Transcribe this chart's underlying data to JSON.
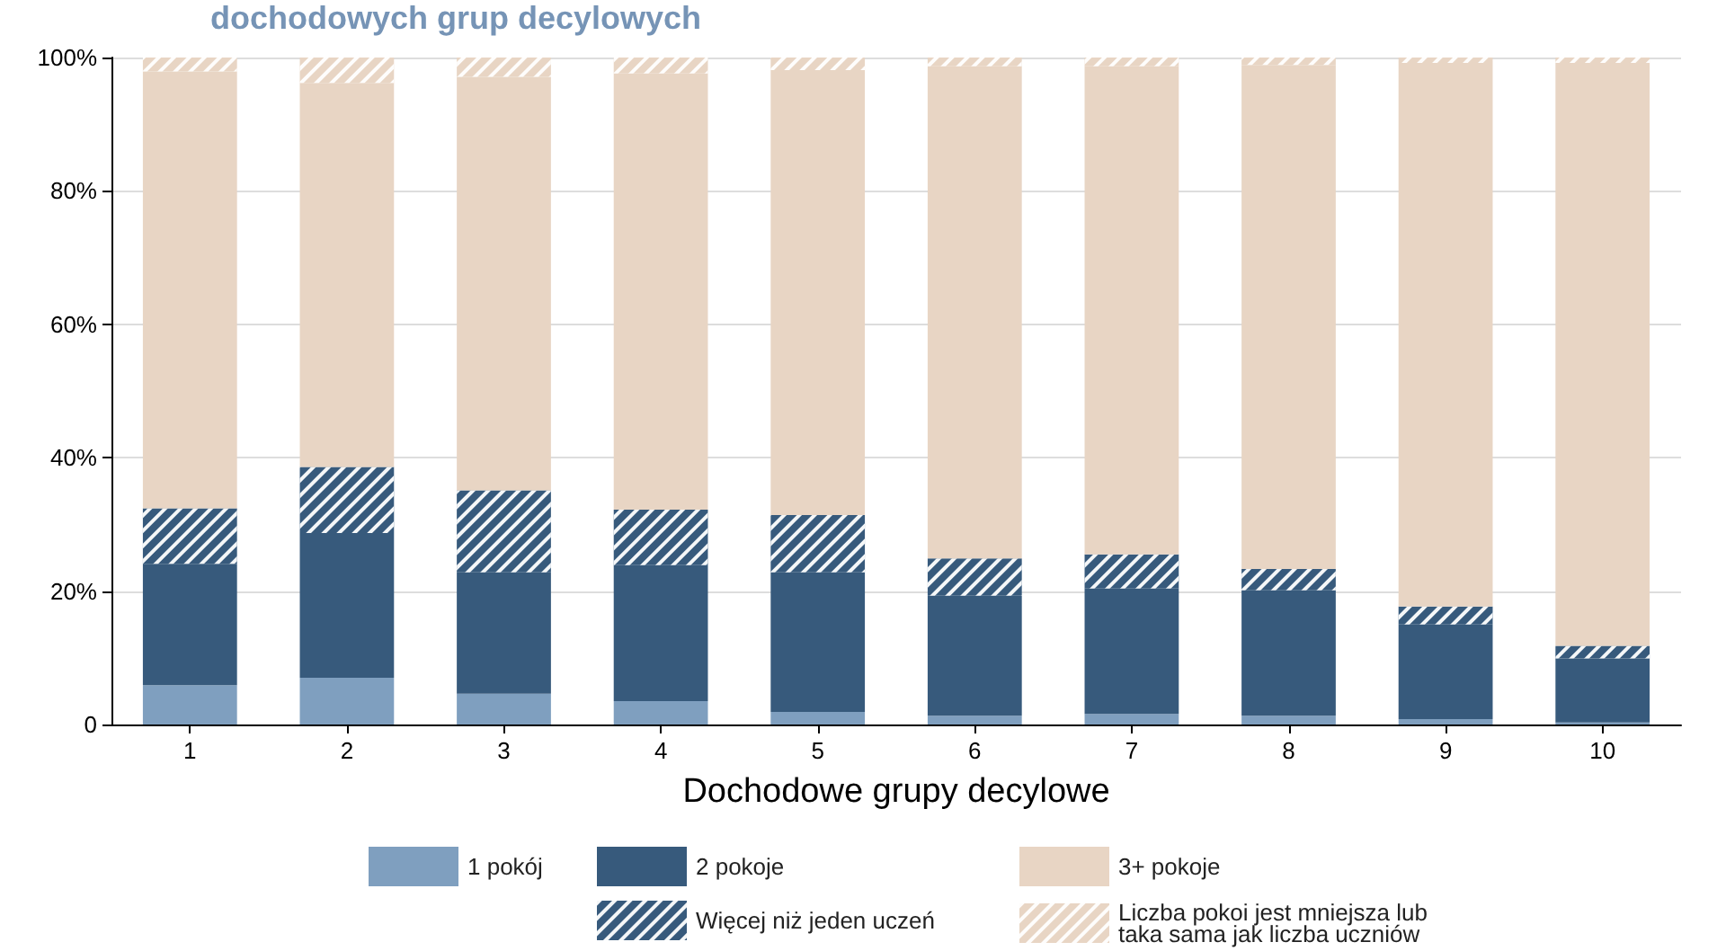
{
  "chart_data": {
    "type": "bar",
    "title": "dochodowych grup decylowych",
    "xlabel": "Dochodowe grupy decylowe",
    "categories": [
      "1",
      "2",
      "3",
      "4",
      "5",
      "6",
      "7",
      "8",
      "9",
      "10"
    ],
    "stacked": true,
    "ylim": [
      0,
      100
    ],
    "yticks": [
      {
        "value": 0,
        "label": "0"
      },
      {
        "value": 20,
        "label": "20%"
      },
      {
        "value": 40,
        "label": "40%"
      },
      {
        "value": 60,
        "label": "60%"
      },
      {
        "value": 80,
        "label": "80%"
      },
      {
        "value": 100,
        "label": "100%"
      }
    ],
    "grid": "y",
    "legend": "bottom",
    "series": [
      {
        "name": "1 pokój",
        "color": "#7f9fbf",
        "values": [
          5.9,
          7.0,
          4.6,
          3.5,
          1.9,
          1.3,
          1.6,
          1.3,
          0.8,
          0.3
        ]
      },
      {
        "name": "2 pokoje",
        "color": "#375a7c",
        "values": [
          18.2,
          21.7,
          18.2,
          20.4,
          20.9,
          18.0,
          18.8,
          18.8,
          14.2,
          9.6
        ]
      },
      {
        "name": "Więcej niż jeden uczeń",
        "color": "#375a7c",
        "values": [
          8.3,
          9.9,
          12.3,
          8.3,
          8.6,
          5.6,
          5.1,
          3.2,
          2.7,
          1.9
        ]
      },
      {
        "name": "3+ pokoje",
        "color": "#e8d5c4",
        "values": [
          65.5,
          57.6,
          62.0,
          65.4,
          66.7,
          73.8,
          73.2,
          75.6,
          81.5,
          87.4
        ]
      },
      {
        "name": "Liczba pokoi jest mniejsza lub taka sama jak liczba uczniów",
        "color": "#e8d5c4",
        "values": [
          2.1,
          3.8,
          2.9,
          2.4,
          1.9,
          1.3,
          1.3,
          1.1,
          0.8,
          0.8
        ]
      }
    ]
  }
}
